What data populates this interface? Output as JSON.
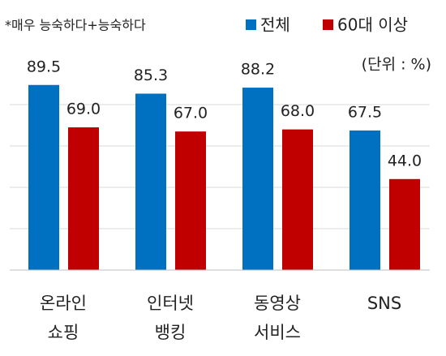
{
  "chart_data": {
    "type": "bar",
    "note": "*매우 능숙하다+능숙하다",
    "unit": "(단위 : %)",
    "categories": [
      "온라인\n쇼핑",
      "인터넷\n뱅킹",
      "동영상\n서비스",
      "SNS"
    ],
    "series": [
      {
        "name": "전체",
        "color": "#0070c0",
        "values": [
          89.5,
          85.3,
          88.2,
          67.5
        ],
        "value_labels": [
          "89.5",
          "85.3",
          "88.2",
          "67.5"
        ]
      },
      {
        "name": "60대 이상",
        "color": "#c00000",
        "values": [
          69.0,
          67.0,
          68.0,
          44.0
        ],
        "value_labels": [
          "69.0",
          "67.0",
          "68.0",
          "44.0"
        ]
      }
    ],
    "ylim": [
      0,
      100
    ],
    "yticks": [
      0,
      20,
      40,
      60,
      80
    ],
    "grid": true
  }
}
